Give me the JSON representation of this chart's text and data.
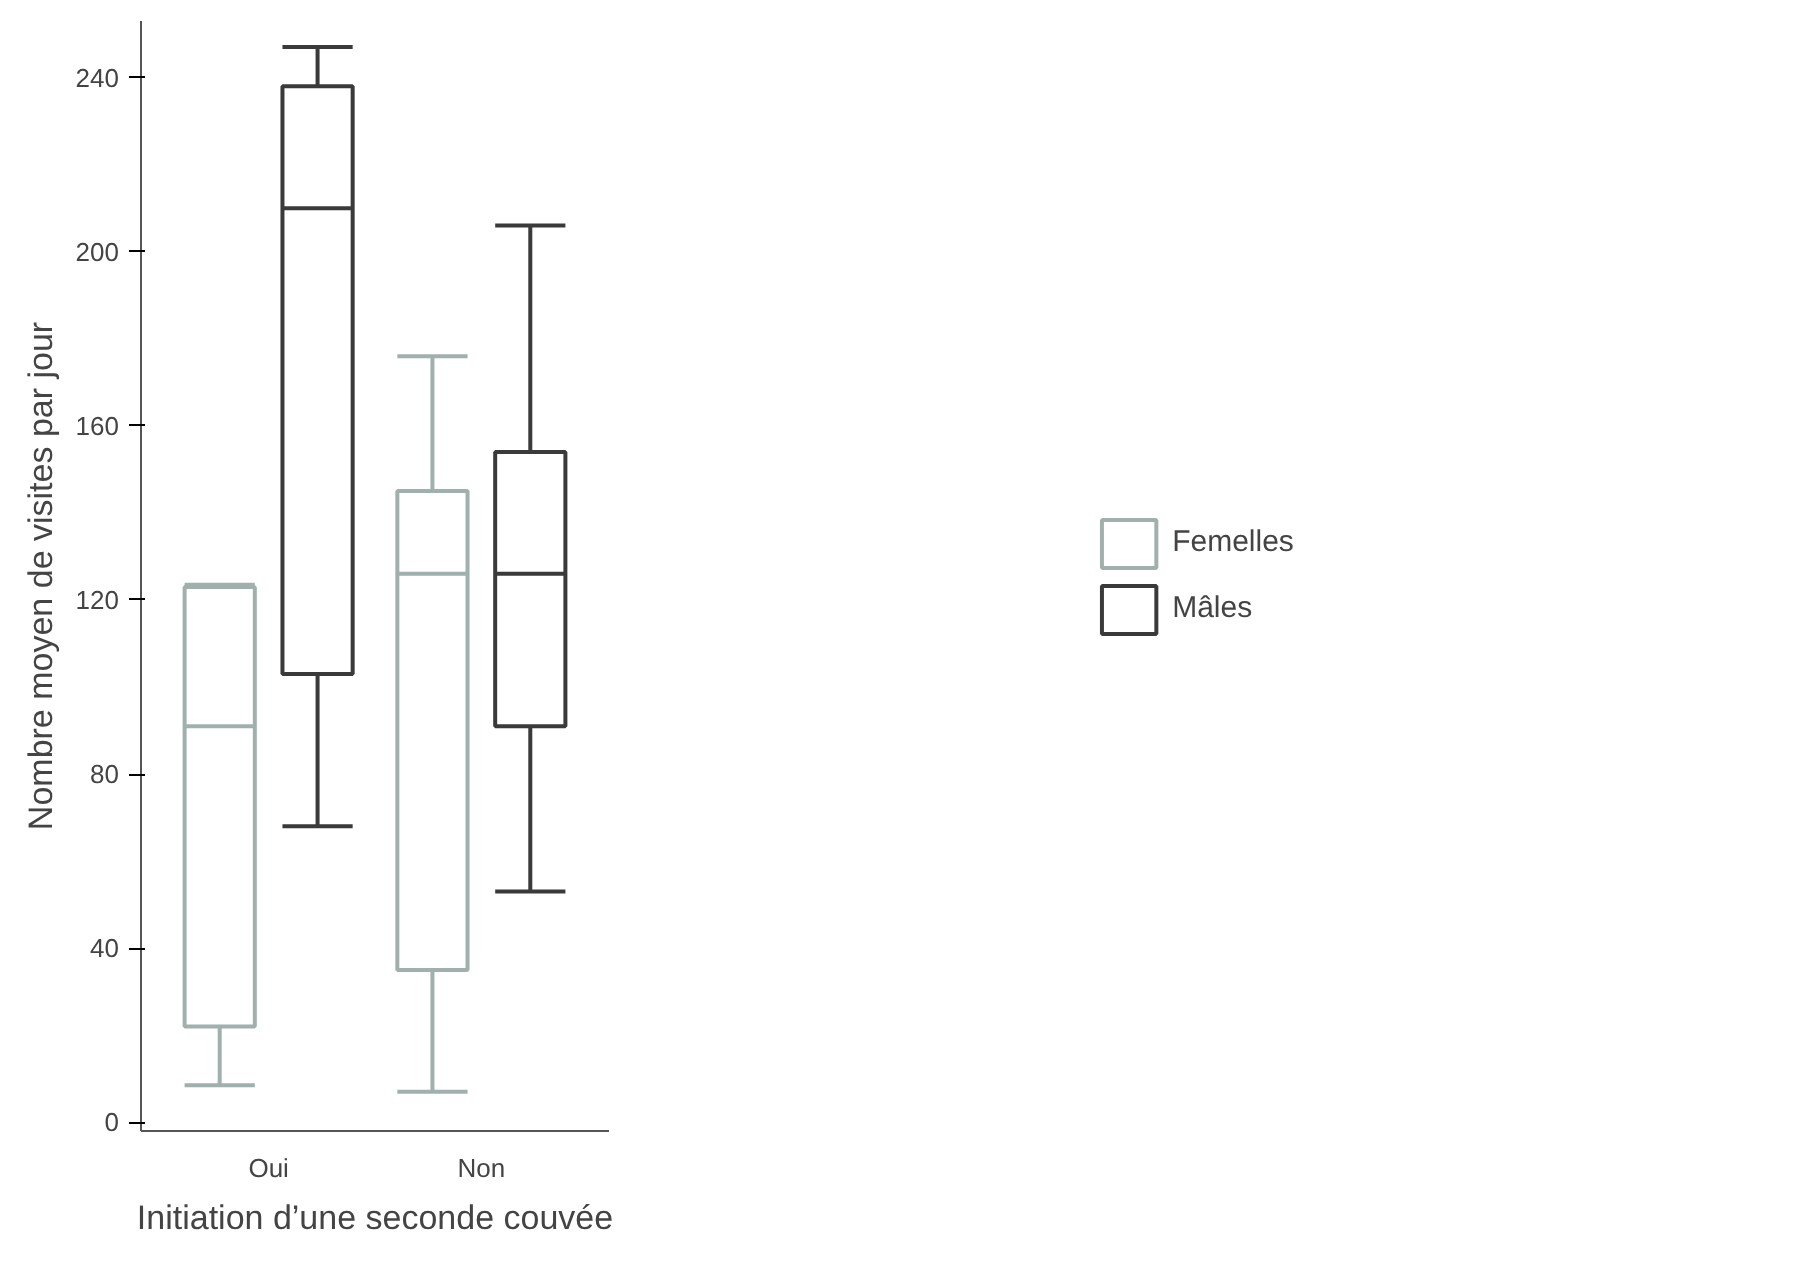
{
  "chart_data": {
    "type": "box",
    "xlabel": "Initiation d’une seconde couvée",
    "ylabel": "Nombre moyen de visites par jour",
    "categories": [
      "Oui",
      "Non"
    ],
    "series": [
      {
        "name": "Femelles",
        "color": "#9fb0ad",
        "boxes": [
          {
            "low": 8.5,
            "q1": 22,
            "median": 91,
            "q3": 123,
            "high": 123.5
          },
          {
            "low": 7,
            "q1": 35,
            "median": 126,
            "q3": 145,
            "high": 176
          }
        ]
      },
      {
        "name": "Mâles",
        "color": "#3a3a3a",
        "boxes": [
          {
            "low": 68,
            "q1": 103,
            "median": 210,
            "q3": 238,
            "high": 247
          },
          {
            "low": 53,
            "q1": 91,
            "median": 126,
            "q3": 154,
            "high": 206
          }
        ]
      }
    ],
    "ylim": [
      -2,
      253
    ],
    "yticks": [
      0,
      40,
      80,
      120,
      160,
      200,
      240
    ],
    "grid": false,
    "legend": "right"
  }
}
